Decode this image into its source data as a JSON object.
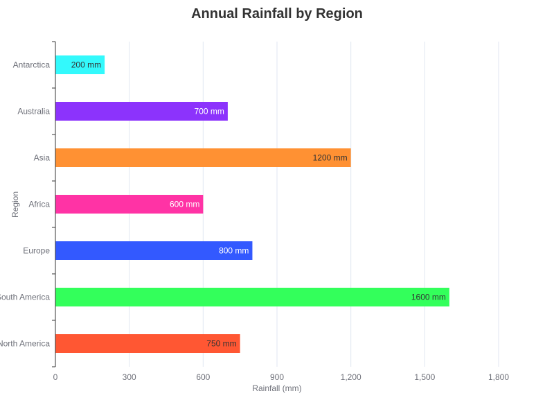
{
  "chart_data": {
    "type": "bar",
    "orientation": "horizontal",
    "title": "Annual Rainfall by Region",
    "xlabel": "Rainfall (mm)",
    "ylabel": "Region",
    "xlim": [
      0,
      1800
    ],
    "x_ticks": [
      0,
      300,
      600,
      900,
      1200,
      1500,
      1800
    ],
    "x_tick_labels": [
      "0",
      "300",
      "600",
      "900",
      "1,200",
      "1,500",
      "1,800"
    ],
    "grid": "vertical",
    "legend": "none",
    "categories": [
      "Antarctica",
      "Australia",
      "Asia",
      "Africa",
      "Europe",
      "South America",
      "North America"
    ],
    "values": [
      200,
      700,
      1200,
      600,
      800,
      1600,
      750
    ],
    "unit": "mm",
    "data_labels": [
      "200 mm",
      "700 mm",
      "1200 mm",
      "600 mm",
      "800 mm",
      "1600 mm",
      "750 mm"
    ],
    "colors": [
      "#33f9fc",
      "#8c33fc",
      "#ff9133",
      "#ff33a5",
      "#3359ff",
      "#33ff5b",
      "#ff5733"
    ],
    "label_colors": [
      "#333333",
      "#ffffff",
      "#333333",
      "#ffffff",
      "#ffffff",
      "#333333",
      "#333333"
    ]
  }
}
